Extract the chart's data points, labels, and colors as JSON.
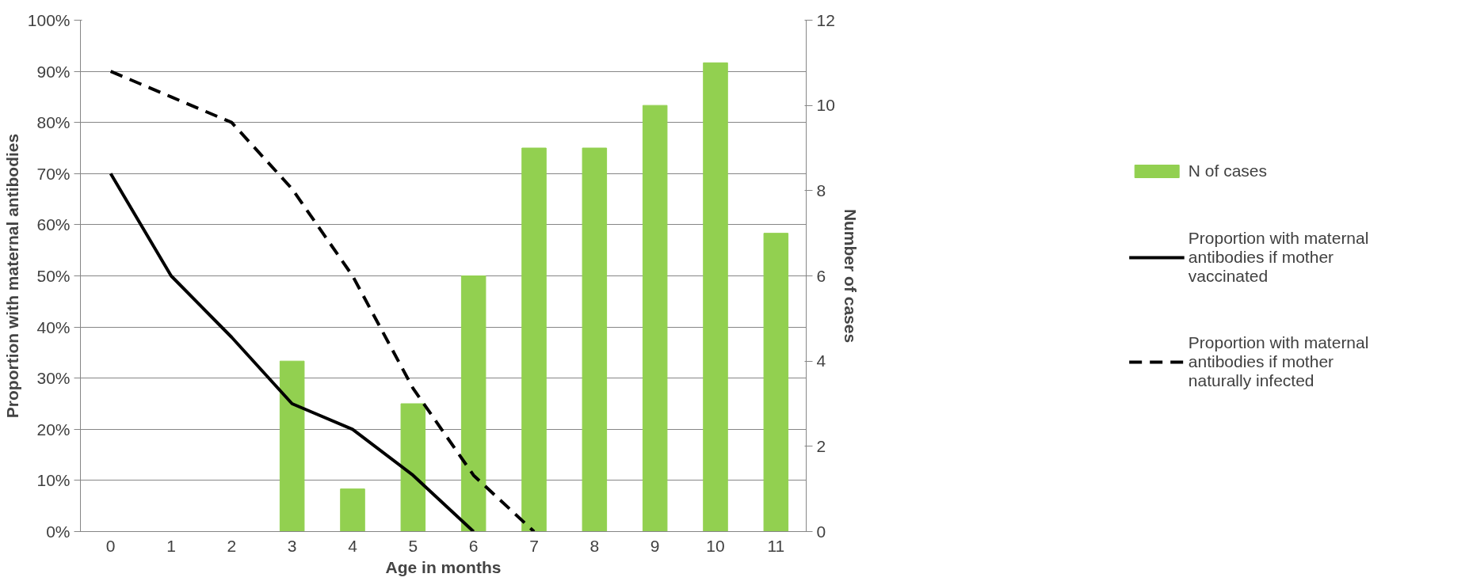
{
  "chart_data": {
    "type": "bar",
    "xlabel": "Age in months",
    "ylabel": "Proportion with maternal antibodies",
    "y2label": "Number of cases",
    "categories": [
      "0",
      "1",
      "2",
      "3",
      "4",
      "5",
      "6",
      "7",
      "8",
      "9",
      "10",
      "11"
    ],
    "series": [
      {
        "name": "N of cases",
        "axis": "y2",
        "color": "#92d050",
        "values": [
          0,
          0,
          0,
          4,
          1,
          3,
          6,
          9,
          9,
          10,
          11,
          7
        ]
      },
      {
        "name": "Proportion with maternal antibodies if mother vaccinated",
        "type": "line",
        "color": "#000000",
        "line_style": "solid",
        "values": [
          70,
          50,
          38,
          25,
          20,
          11,
          0,
          null,
          null,
          null,
          null,
          null
        ]
      },
      {
        "name": "Proportion with maternal antibodies if mother naturally infected",
        "type": "line",
        "color": "#000000",
        "line_style": "dashed",
        "values": [
          90,
          85,
          80,
          67,
          50,
          28,
          11,
          0,
          null,
          null,
          null,
          null
        ]
      }
    ],
    "ylim": [
      0,
      100
    ],
    "yticks": [
      {
        "value": 0,
        "label": "0%"
      },
      {
        "value": 10,
        "label": "10%"
      },
      {
        "value": 20,
        "label": "20%"
      },
      {
        "value": 30,
        "label": "30%"
      },
      {
        "value": 40,
        "label": "40%"
      },
      {
        "value": 50,
        "label": "50%"
      },
      {
        "value": 60,
        "label": "60%"
      },
      {
        "value": 70,
        "label": "70%"
      },
      {
        "value": 80,
        "label": "80%"
      },
      {
        "value": 90,
        "label": "90%"
      },
      {
        "value": 100,
        "label": "100%"
      }
    ],
    "y2lim": [
      0,
      12
    ],
    "y2ticks": [
      0,
      2,
      4,
      6,
      8,
      10,
      12
    ],
    "grid": "y",
    "legend": "right",
    "marker": "none"
  }
}
